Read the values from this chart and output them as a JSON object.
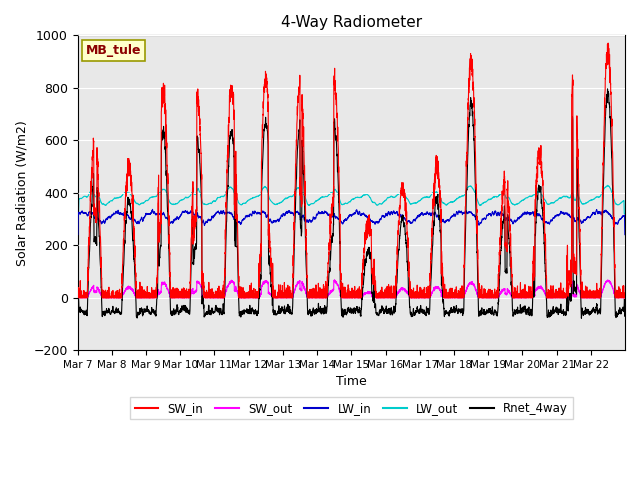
{
  "title": "4-Way Radiometer",
  "xlabel": "Time",
  "ylabel": "Solar Radiation (W/m2)",
  "ylim": [
    -200,
    1000
  ],
  "annotation_text": "MB_tule",
  "annotation_box_color": "#FFFFCC",
  "annotation_text_color": "#8B0000",
  "background_color": "#E8E8E8",
  "x_tick_labels": [
    "Mar 7",
    "Mar 8",
    "Mar 9",
    "Mar 10",
    "Mar 11",
    "Mar 12",
    "Mar 13",
    "Mar 14",
    "Mar 15",
    "Mar 16",
    "Mar 17",
    "Mar 18",
    "Mar 19",
    "Mar 20",
    "Mar 21",
    "Mar 22"
  ],
  "series": {
    "SW_in": {
      "color": "#FF0000",
      "linewidth": 0.8
    },
    "SW_out": {
      "color": "#FF00FF",
      "linewidth": 0.8
    },
    "LW_in": {
      "color": "#0000CC",
      "linewidth": 0.8
    },
    "LW_out": {
      "color": "#00CCCC",
      "linewidth": 0.8
    },
    "Rnet_4way": {
      "color": "#000000",
      "linewidth": 0.8
    }
  },
  "n_days": 16,
  "pts_per_day": 288,
  "seed": 12345,
  "peak_heights": [
    600,
    500,
    780,
    760,
    800,
    830,
    820,
    820,
    290,
    420,
    500,
    900,
    450,
    550,
    850,
    950
  ],
  "lw_out_base": 370,
  "lw_in_base": 305
}
